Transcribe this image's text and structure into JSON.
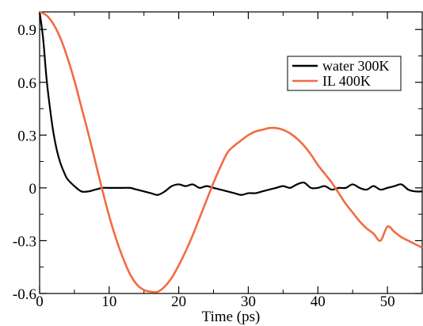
{
  "chart_data": {
    "type": "line",
    "title": "",
    "xlabel": "Time (ps)",
    "ylabel": "",
    "xlim": [
      0,
      55
    ],
    "ylim": [
      -0.6,
      1.0
    ],
    "x_ticks": [
      0,
      10,
      20,
      30,
      40,
      50
    ],
    "y_ticks": [
      -0.6,
      -0.3,
      0,
      0.3,
      0.6,
      0.9
    ],
    "x_tick_labels": [
      "0",
      "10",
      "20",
      "30",
      "40",
      "50"
    ],
    "y_tick_labels": [
      "-0.6",
      "-0.3",
      "0",
      "0.3",
      "0.6",
      "0.9"
    ],
    "grid": false,
    "legend": "top-right",
    "series": [
      {
        "name": "water 300K",
        "color": "#000000",
        "x": [
          0,
          0.5,
          1,
          1.5,
          2,
          2.5,
          3,
          3.5,
          4,
          5,
          6,
          7,
          8,
          9,
          10,
          11,
          12,
          13,
          14,
          15,
          16,
          17,
          18,
          19,
          20,
          21,
          22,
          23,
          24,
          25,
          26,
          27,
          28,
          29,
          30,
          31,
          32,
          33,
          34,
          35,
          36,
          37,
          38,
          39,
          40,
          41,
          42,
          43,
          44,
          45,
          46,
          47,
          48,
          49,
          50,
          51,
          52,
          53,
          54,
          55
        ],
        "y": [
          1.0,
          0.85,
          0.62,
          0.45,
          0.31,
          0.21,
          0.14,
          0.09,
          0.05,
          0.01,
          -0.02,
          -0.02,
          -0.01,
          0.0,
          0.0,
          0.0,
          0.0,
          0.0,
          -0.01,
          -0.02,
          -0.03,
          -0.04,
          -0.02,
          0.01,
          0.02,
          0.01,
          0.02,
          0.0,
          0.01,
          0.0,
          -0.01,
          -0.02,
          -0.03,
          -0.04,
          -0.03,
          -0.03,
          -0.02,
          -0.01,
          0.0,
          0.01,
          0.0,
          0.02,
          0.03,
          0.0,
          0.0,
          0.01,
          -0.01,
          0.0,
          0.0,
          0.02,
          0.0,
          -0.01,
          0.01,
          -0.01,
          0.0,
          0.01,
          0.02,
          -0.01,
          -0.02,
          -0.02
        ]
      },
      {
        "name": "IL 400K",
        "color": "#f26b44",
        "x": [
          0,
          1,
          2,
          3,
          4,
          5,
          6,
          7,
          8,
          9,
          10,
          11,
          12,
          13,
          14,
          15,
          16,
          17,
          18,
          19,
          20,
          21,
          22,
          23,
          24,
          25,
          26,
          27,
          28,
          29,
          30,
          31,
          32,
          33,
          34,
          35,
          36,
          37,
          38,
          39,
          40,
          41,
          42,
          43,
          44,
          45,
          46,
          47,
          48,
          49,
          50,
          51,
          52,
          53,
          54,
          55
        ],
        "y": [
          1.0,
          0.98,
          0.93,
          0.85,
          0.74,
          0.61,
          0.46,
          0.31,
          0.15,
          -0.01,
          -0.16,
          -0.29,
          -0.4,
          -0.49,
          -0.55,
          -0.58,
          -0.59,
          -0.59,
          -0.56,
          -0.51,
          -0.44,
          -0.36,
          -0.27,
          -0.17,
          -0.07,
          0.03,
          0.12,
          0.2,
          0.24,
          0.27,
          0.3,
          0.32,
          0.33,
          0.34,
          0.34,
          0.33,
          0.31,
          0.28,
          0.24,
          0.19,
          0.13,
          0.08,
          0.03,
          -0.03,
          -0.09,
          -0.14,
          -0.19,
          -0.23,
          -0.26,
          -0.3,
          -0.22,
          -0.25,
          -0.28,
          -0.3,
          -0.32,
          -0.34
        ]
      }
    ]
  }
}
